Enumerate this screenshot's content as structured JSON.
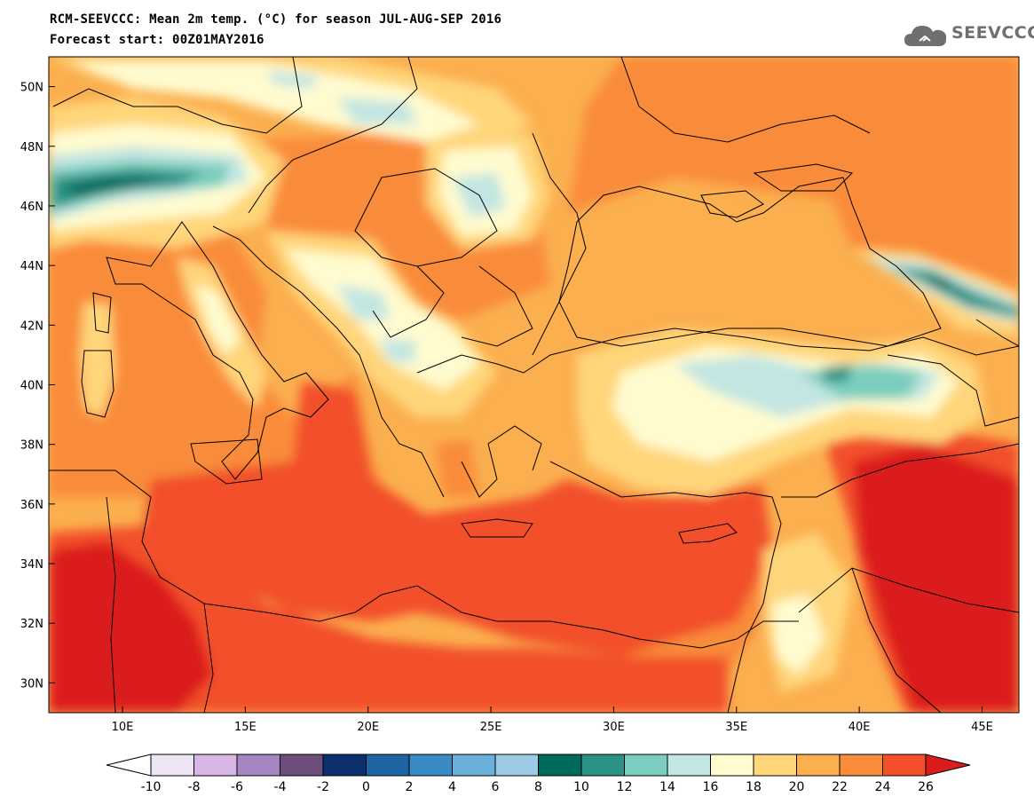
{
  "title": {
    "line1": "RCM-SEEVCCC: Mean 2m temp. (°C) for season JUL-AUG-SEP 2016",
    "line2": "Forecast start: 00Z01MAY2016"
  },
  "logo": {
    "text": "SEEVCCC",
    "icon": "cloud-icon"
  },
  "axes": {
    "lon_labels": [
      "10E",
      "15E",
      "20E",
      "25E",
      "30E",
      "35E",
      "40E",
      "45E"
    ],
    "lat_labels": [
      "50N",
      "48N",
      "46N",
      "44N",
      "42N",
      "40N",
      "38N",
      "36N",
      "34N",
      "32N",
      "30N"
    ],
    "lon_range": [
      7,
      46.5
    ],
    "lat_range": [
      29,
      51
    ]
  },
  "colorbar": {
    "labels": [
      "-10",
      "-8",
      "-6",
      "-4",
      "-2",
      "0",
      "2",
      "4",
      "6",
      "8",
      "10",
      "12",
      "14",
      "16",
      "18",
      "20",
      "22",
      "24",
      "26"
    ],
    "colors": [
      "#ffffff",
      "#ede4f4",
      "#d7b5e4",
      "#a585c2",
      "#6d4e7a",
      "#0c2f6e",
      "#1f64a4",
      "#3a8ac4",
      "#6ab0d9",
      "#9ecae6",
      "#006b5a",
      "#2b9284",
      "#7bcdbf",
      "#c3e6e2",
      "#fffbcf",
      "#ffd67a",
      "#fbaf4f",
      "#f98c3a",
      "#f24f2a",
      "#db1c1d"
    ],
    "unit": "°C"
  }
}
